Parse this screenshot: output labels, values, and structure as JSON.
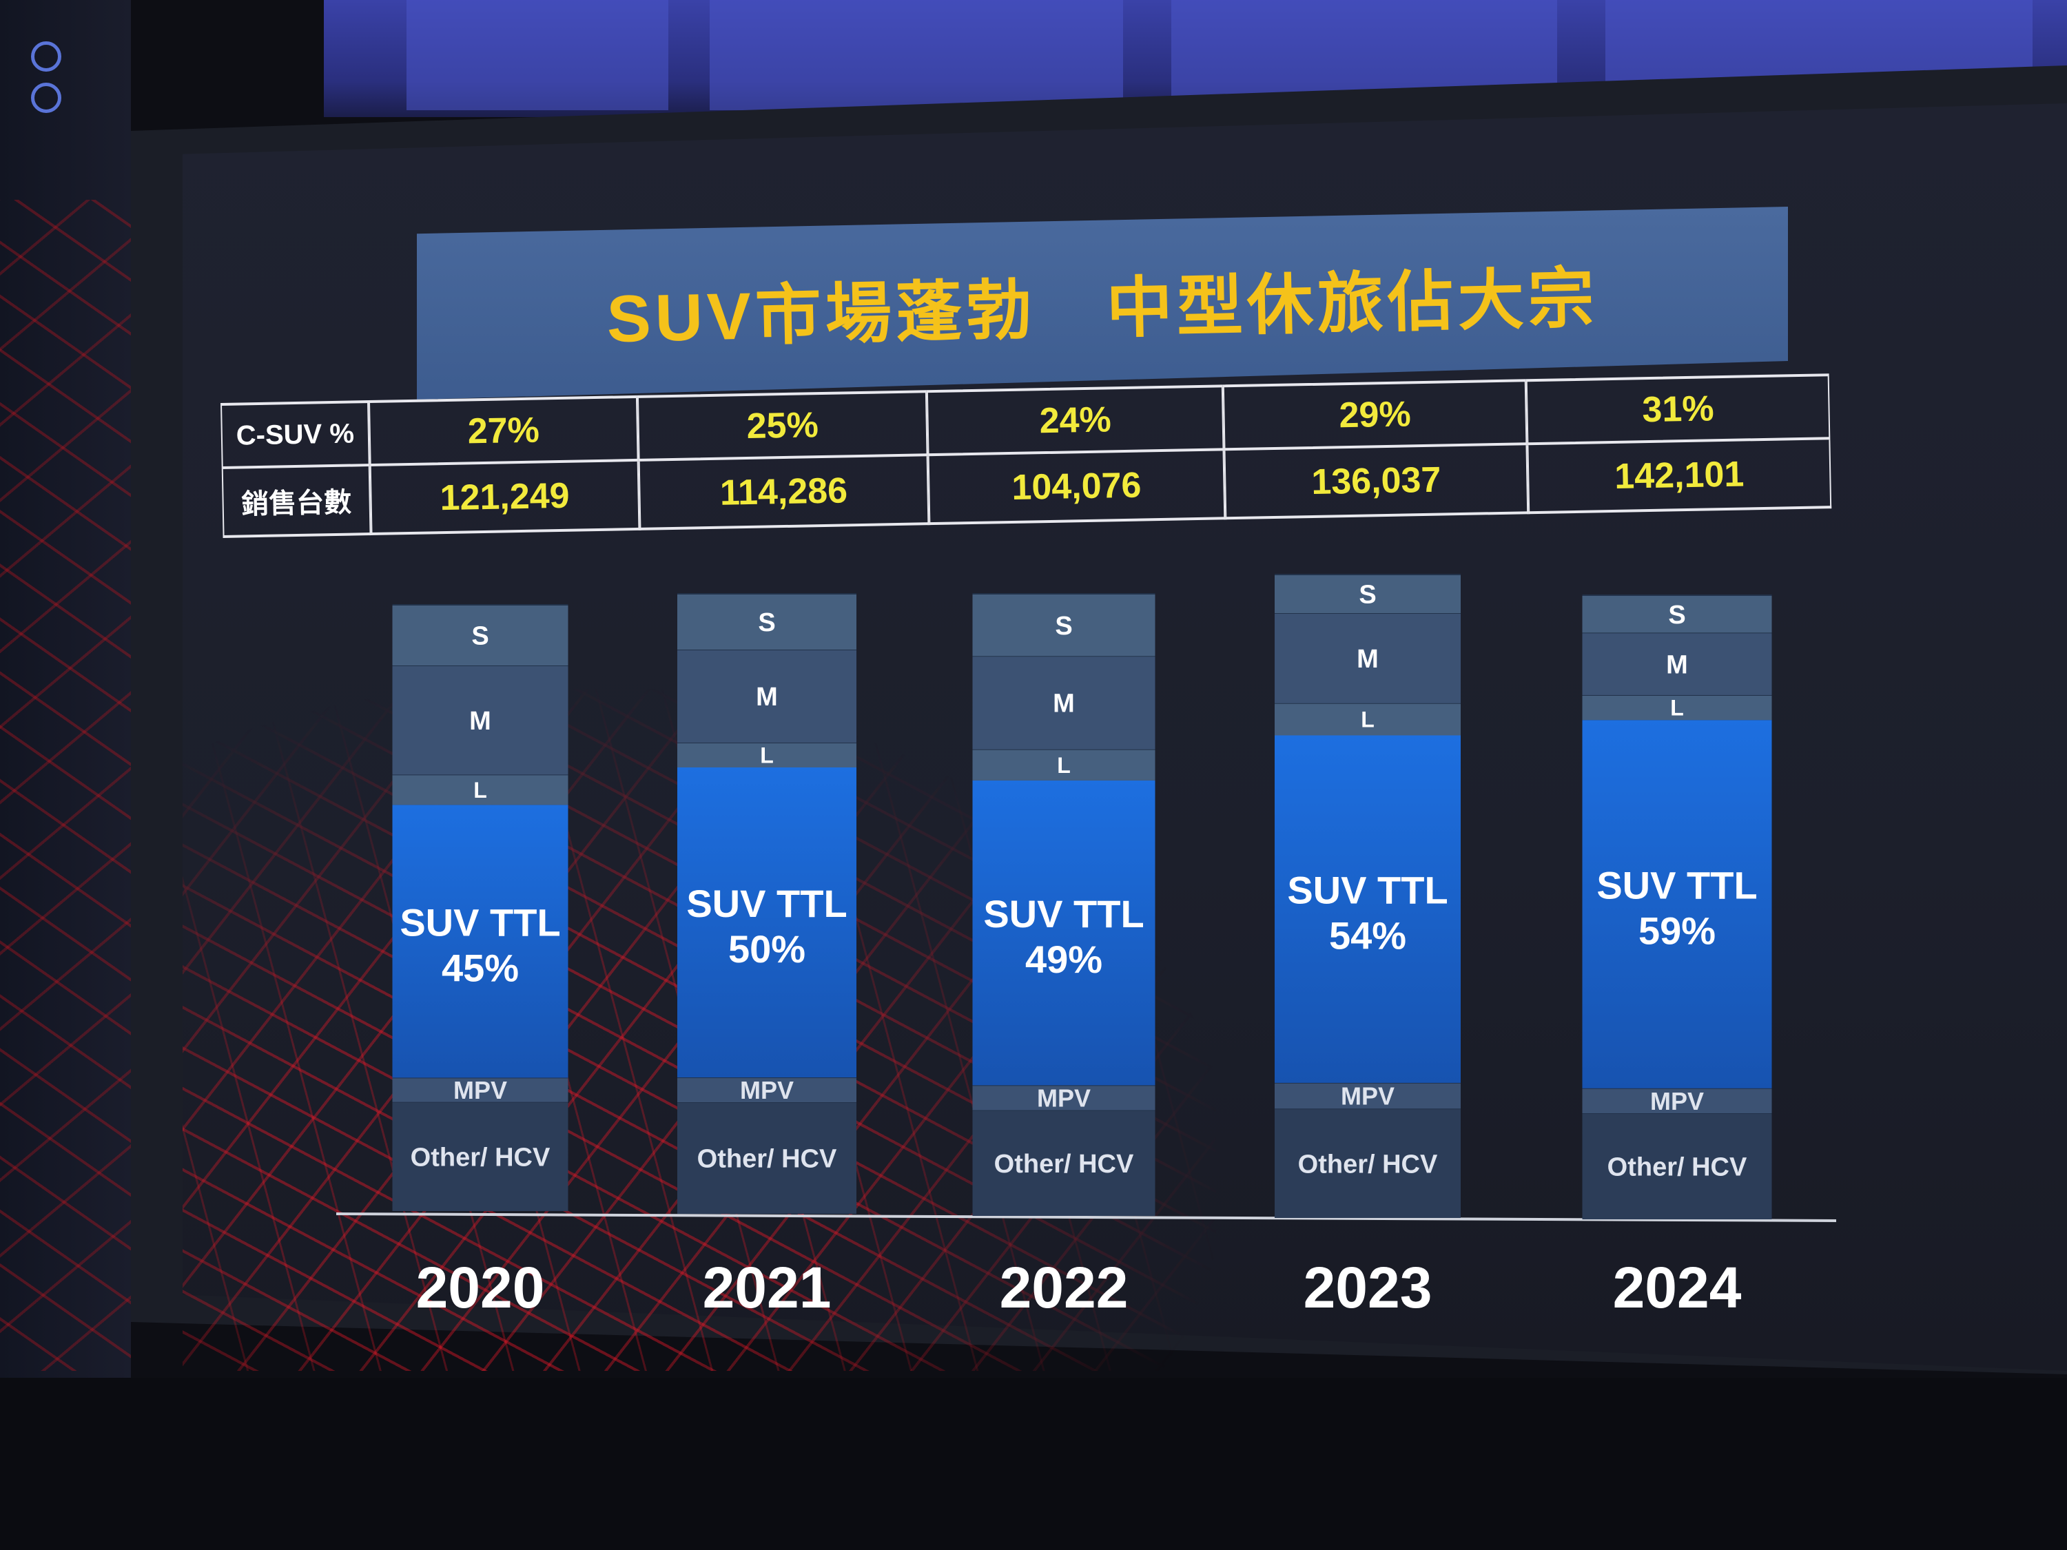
{
  "title": "SUV市場蓬勃　中型休旅佔大宗",
  "table": {
    "row_labels": [
      "C-SUV %",
      "銷售台數"
    ],
    "csuv_pct": [
      "27%",
      "25%",
      "24%",
      "29%",
      "31%"
    ],
    "sales": [
      "121,249",
      "114,286",
      "104,076",
      "136,037",
      "142,101"
    ]
  },
  "chart_data": {
    "type": "bar",
    "stacked": true,
    "categories": [
      "2020",
      "2021",
      "2022",
      "2023",
      "2024"
    ],
    "segment_labels": [
      "Other/ HCV",
      "MPV",
      "SUV TTL",
      "L",
      "M",
      "S"
    ],
    "suv_label_prefix": "SUV TTL",
    "suv_share": [
      45,
      50,
      49,
      54,
      59
    ],
    "suv_share_labels": [
      "45%",
      "50%",
      "49%",
      "54%",
      "59%"
    ],
    "series": [
      {
        "name": "Other/ HCV",
        "values": [
          18,
          18,
          17,
          17,
          17
        ]
      },
      {
        "name": "MPV",
        "values": [
          4,
          4,
          4,
          4,
          4
        ]
      },
      {
        "name": "SUV TTL",
        "values": [
          45,
          50,
          49,
          54,
          59
        ]
      },
      {
        "name": "L",
        "values": [
          5,
          4,
          5,
          5,
          4
        ]
      },
      {
        "name": "M",
        "values": [
          18,
          15,
          15,
          14,
          10
        ]
      },
      {
        "name": "S",
        "values": [
          10,
          9,
          10,
          6,
          6
        ]
      }
    ],
    "colors": {
      "suv": "#1d6fe0",
      "suv_dark": "#1753b0",
      "segment": "#3c5273",
      "segment_alt": "#46607f",
      "band_dark": "#2c3d58",
      "label": "#ffffff",
      "axis": "#cfd3dc"
    },
    "ylim": [
      0,
      100
    ],
    "grid": false,
    "legend": "none"
  }
}
